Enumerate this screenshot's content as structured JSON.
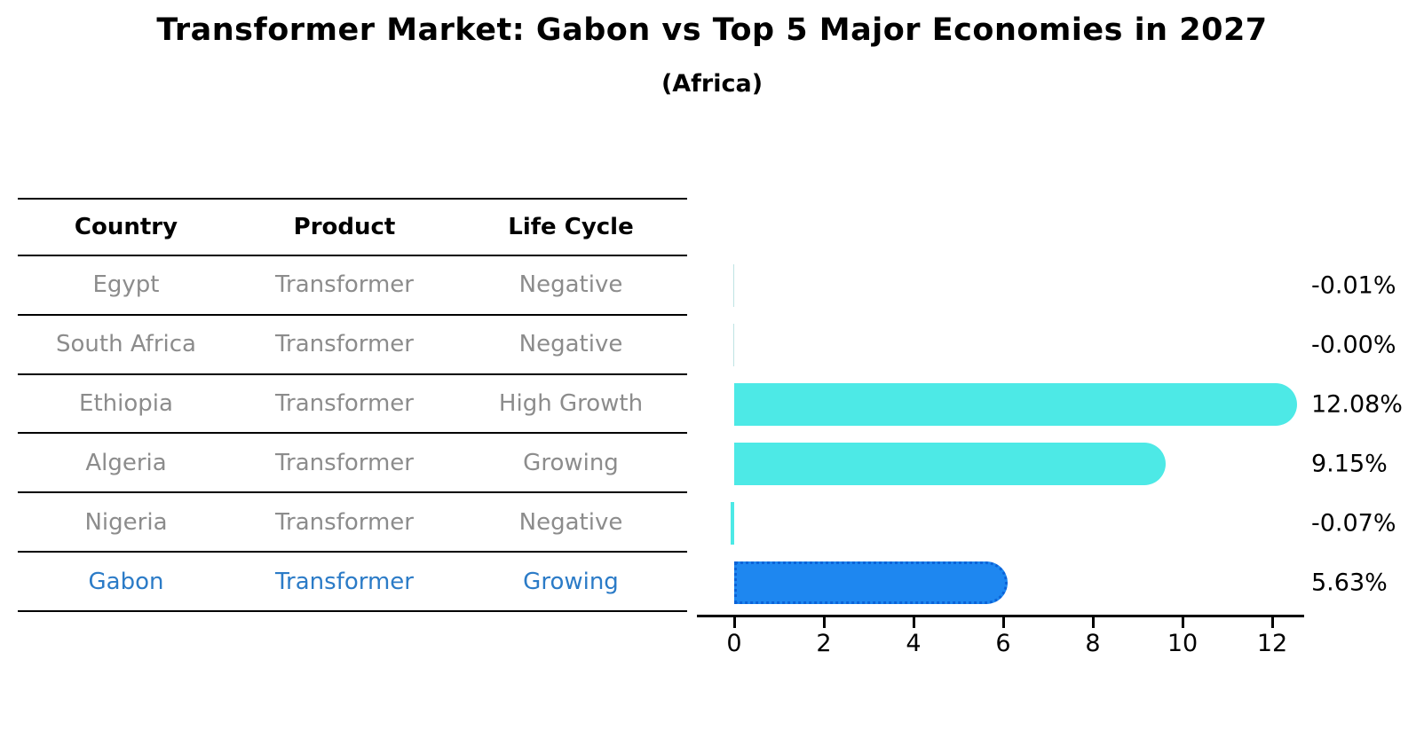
{
  "title": "Transformer Market: Gabon vs Top 5 Major Economies in 2027",
  "subtitle": "(Africa)",
  "table": {
    "headers": [
      "Country",
      "Product",
      "Life Cycle"
    ],
    "rows": [
      {
        "country": "Egypt",
        "product": "Transformer",
        "life_cycle": "Negative",
        "highlight": false
      },
      {
        "country": "South Africa",
        "product": "Transformer",
        "life_cycle": "Negative",
        "highlight": false
      },
      {
        "country": "Ethiopia",
        "product": "Transformer",
        "life_cycle": "High Growth",
        "highlight": false
      },
      {
        "country": "Algeria",
        "product": "Transformer",
        "life_cycle": "Growing",
        "highlight": false
      },
      {
        "country": "Nigeria",
        "product": "Transformer",
        "life_cycle": "Negative",
        "highlight": false
      },
      {
        "country": "Gabon",
        "product": "Transformer",
        "life_cycle": "Growing",
        "highlight": true
      }
    ]
  },
  "chart_data": {
    "type": "bar",
    "orientation": "horizontal",
    "title": "Transformer Market: Gabon vs Top 5 Major Economies in 2027",
    "subtitle": "(Africa)",
    "categories": [
      "Egypt",
      "South Africa",
      "Ethiopia",
      "Algeria",
      "Nigeria",
      "Gabon"
    ],
    "values": [
      -0.01,
      -0.0,
      12.08,
      9.15,
      -0.07,
      5.63
    ],
    "value_labels": [
      "-0.01%",
      "-0.00%",
      "12.08%",
      "9.15%",
      "-0.07%",
      "5.63%"
    ],
    "x_ticks": [
      0,
      2,
      4,
      6,
      8,
      10,
      12
    ],
    "xlim": [
      0,
      12.7
    ],
    "grid": false,
    "legend": "none",
    "highlight_index": 5,
    "unit_suffix": "%"
  },
  "colors": {
    "default_bar": "#4DE9E6",
    "faint_bar": "#BFE3E3",
    "highlight_bar": "#1E87F0",
    "highlight_bar_edge": "#0B63D8",
    "row_text": "#8C8C8C",
    "highlight_text": "#2B7BC7",
    "header_text": "#000000",
    "axis": "#000000"
  }
}
